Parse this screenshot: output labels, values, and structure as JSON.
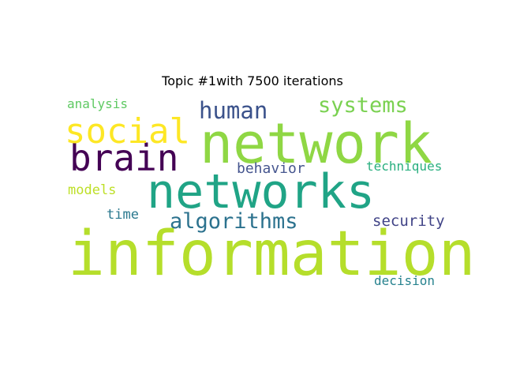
{
  "chart_data": {
    "type": "wordcloud",
    "title": "Topic #1with 7500 iterations",
    "words": [
      {
        "text": "information",
        "weight": 1.0,
        "color": "#b5de2b"
      },
      {
        "text": "network",
        "weight": 0.82,
        "color": "#8fd744"
      },
      {
        "text": "networks",
        "weight": 0.7,
        "color": "#20a486"
      },
      {
        "text": "brain",
        "weight": 0.55,
        "color": "#440154"
      },
      {
        "text": "social",
        "weight": 0.52,
        "color": "#fde725"
      },
      {
        "text": "algorithms",
        "weight": 0.36,
        "color": "#2c728e"
      },
      {
        "text": "human",
        "weight": 0.34,
        "color": "#3b528b"
      },
      {
        "text": "systems",
        "weight": 0.32,
        "color": "#7ad151"
      },
      {
        "text": "security",
        "weight": 0.24,
        "color": "#414487"
      },
      {
        "text": "behavior",
        "weight": 0.22,
        "color": "#46568f"
      },
      {
        "text": "models",
        "weight": 0.21,
        "color": "#bddf26"
      },
      {
        "text": "time",
        "weight": 0.21,
        "color": "#2a788e"
      },
      {
        "text": "analysis",
        "weight": 0.2,
        "color": "#5ec962"
      },
      {
        "text": "techniques",
        "weight": 0.2,
        "color": "#29af7f"
      },
      {
        "text": "decision",
        "weight": 0.2,
        "color": "#26828e"
      }
    ]
  }
}
